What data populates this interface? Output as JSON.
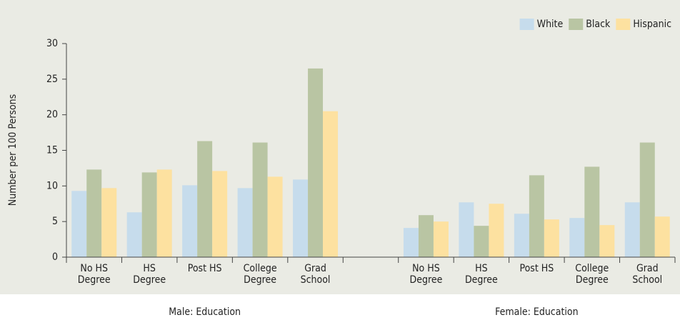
{
  "chart_data": {
    "type": "bar",
    "y_label": "Number per 100 Persons",
    "categories": [
      "No HS\nDegree",
      "HS\nDegree",
      "Post HS",
      "College\nDegree",
      "Grad\nSchool",
      null,
      "No HS\nDegree",
      "HS\nDegree",
      "Post HS",
      "College\nDegree",
      "Grad\nSchool"
    ],
    "group_labels": [
      "Male: Education",
      "Female: Education"
    ],
    "series": [
      {
        "name": "White",
        "color": "#c6dcec",
        "values": [
          9.3,
          6.3,
          10.1,
          9.7,
          10.9,
          null,
          4.1,
          7.7,
          6.1,
          5.5,
          7.7
        ]
      },
      {
        "name": "Black",
        "color": "#b9c5a3",
        "values": [
          12.3,
          11.9,
          16.3,
          16.1,
          26.5,
          null,
          5.9,
          4.4,
          11.5,
          12.7,
          16.1
        ]
      },
      {
        "name": "Hispanic",
        "color": "#fde1a0",
        "values": [
          9.7,
          12.3,
          12.1,
          11.3,
          20.5,
          null,
          5.0,
          7.5,
          5.3,
          4.5,
          5.7
        ]
      }
    ],
    "ylim": [
      0,
      30
    ],
    "yticks": [
      0,
      5,
      10,
      15,
      20,
      25,
      30
    ],
    "legend": "top-right"
  }
}
